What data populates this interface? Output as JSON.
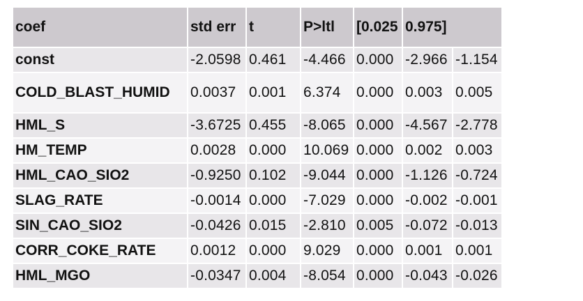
{
  "table": {
    "headers": [
      "coef",
      "std err",
      "t",
      "P>ltl",
      "[0.025",
      "0.975]"
    ],
    "rows": [
      {
        "name": "const",
        "values": [
          "-2.0598",
          "0.461",
          "-4.466",
          "0.000",
          "-2.966",
          "-1.154"
        ]
      },
      {
        "name": "COLD_BLAST_HUMID",
        "values": [
          "0.0037",
          "0.001",
          "6.374",
          "0.000",
          "0.003",
          "0.005"
        ]
      },
      {
        "name": "HML_S",
        "values": [
          "-3.6725",
          "0.455",
          "-8.065",
          "0.000",
          "-4.567",
          "-2.778"
        ]
      },
      {
        "name": "HM_TEMP",
        "values": [
          "0.0028",
          "0.000",
          "10.069",
          "0.000",
          "0.002",
          "0.003"
        ]
      },
      {
        "name": "HML_CAO_SIO2",
        "values": [
          "-0.9250",
          "0.102",
          "-9.044",
          "0.000",
          "-1.126",
          "-0.724"
        ]
      },
      {
        "name": "SLAG_RATE",
        "values": [
          "-0.0014",
          "0.000",
          "-7.029",
          "0.000",
          "-0.002",
          "-0.001"
        ]
      },
      {
        "name": "SIN_CAO_SIO2",
        "values": [
          "-0.0426",
          "0.015",
          "-2.810",
          "0.005",
          "-0.072",
          "-0.013"
        ]
      },
      {
        "name": "CORR_COKE_RATE",
        "values": [
          "0.0012",
          "0.000",
          "9.029",
          "0.000",
          "0.001",
          "0.001"
        ]
      },
      {
        "name": "HML_MGO",
        "values": [
          "-0.0347",
          "0.004",
          "-8.054",
          "0.000",
          "-0.043",
          "-0.026"
        ]
      }
    ]
  },
  "colors": {
    "header_bg": "#cdc9ce",
    "row_odd_bg": "#e8e6e9",
    "row_even_bg": "#f4f3f5"
  }
}
